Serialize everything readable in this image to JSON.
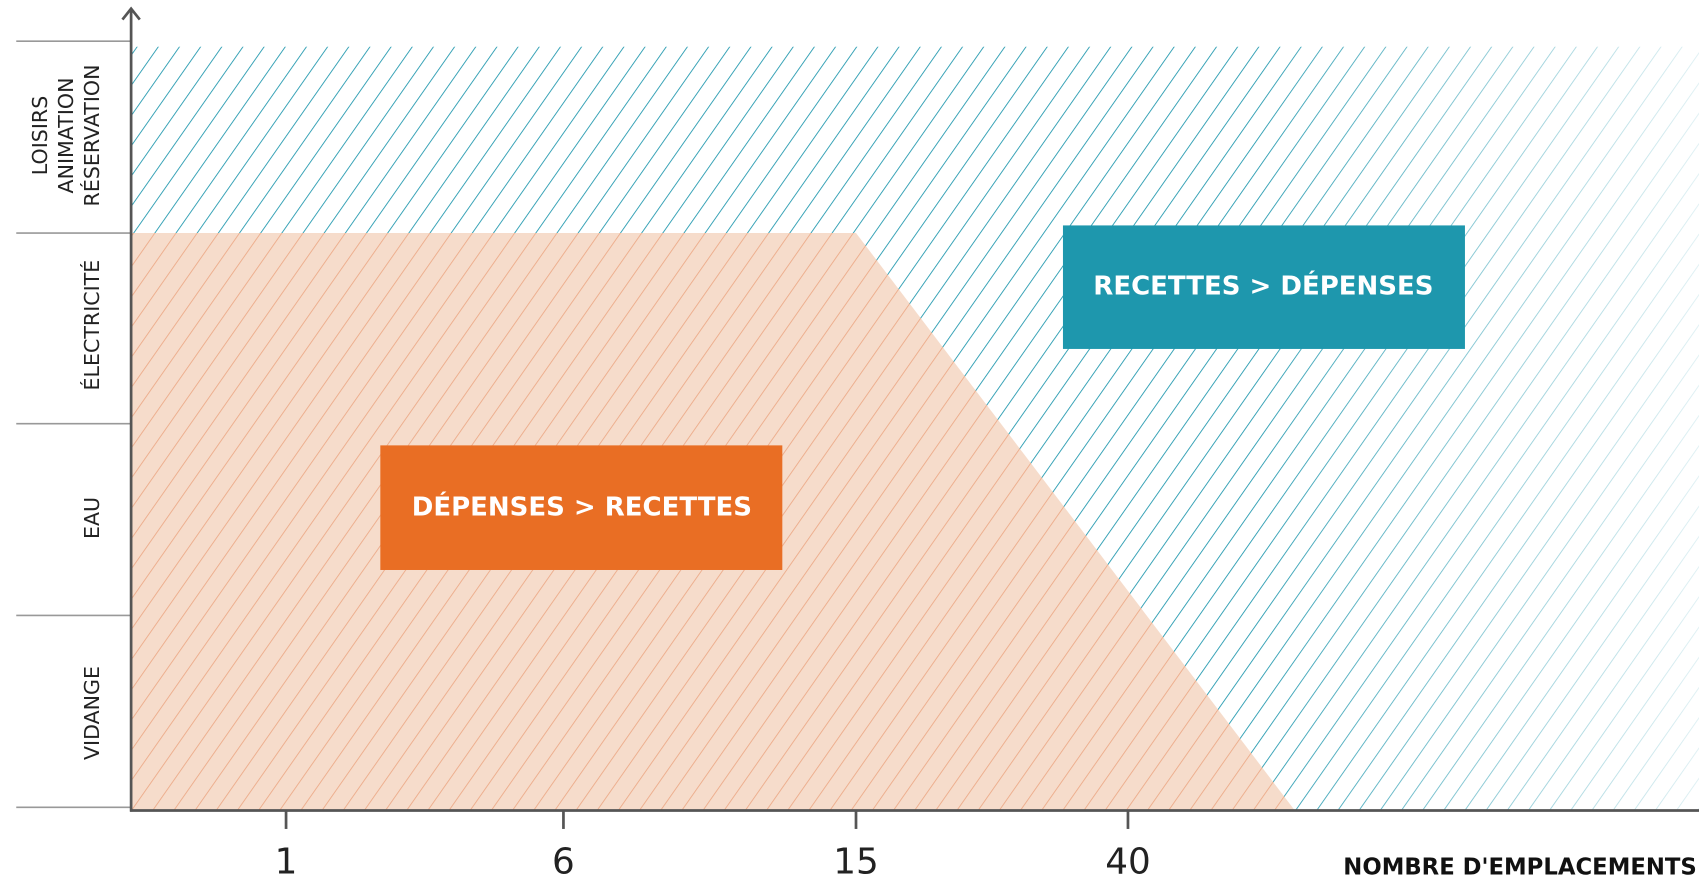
{
  "y_axis": {
    "rows": [
      {
        "lines": [
          "VIDANGE"
        ]
      },
      {
        "lines": [
          "EAU"
        ]
      },
      {
        "lines": [
          "ÉLECTRICITÉ"
        ]
      },
      {
        "lines": [
          "LOISIRS",
          "ANIMATION",
          "RÉSERVATION"
        ]
      }
    ]
  },
  "x_axis": {
    "ticks": [
      "1",
      "6",
      "15",
      "40"
    ],
    "label": "NOMBRE D'EMPLACEMENTS"
  },
  "zones": {
    "profit": "RECETTES > DÉPENSES",
    "loss": "DÉPENSES > RECETTES"
  }
}
